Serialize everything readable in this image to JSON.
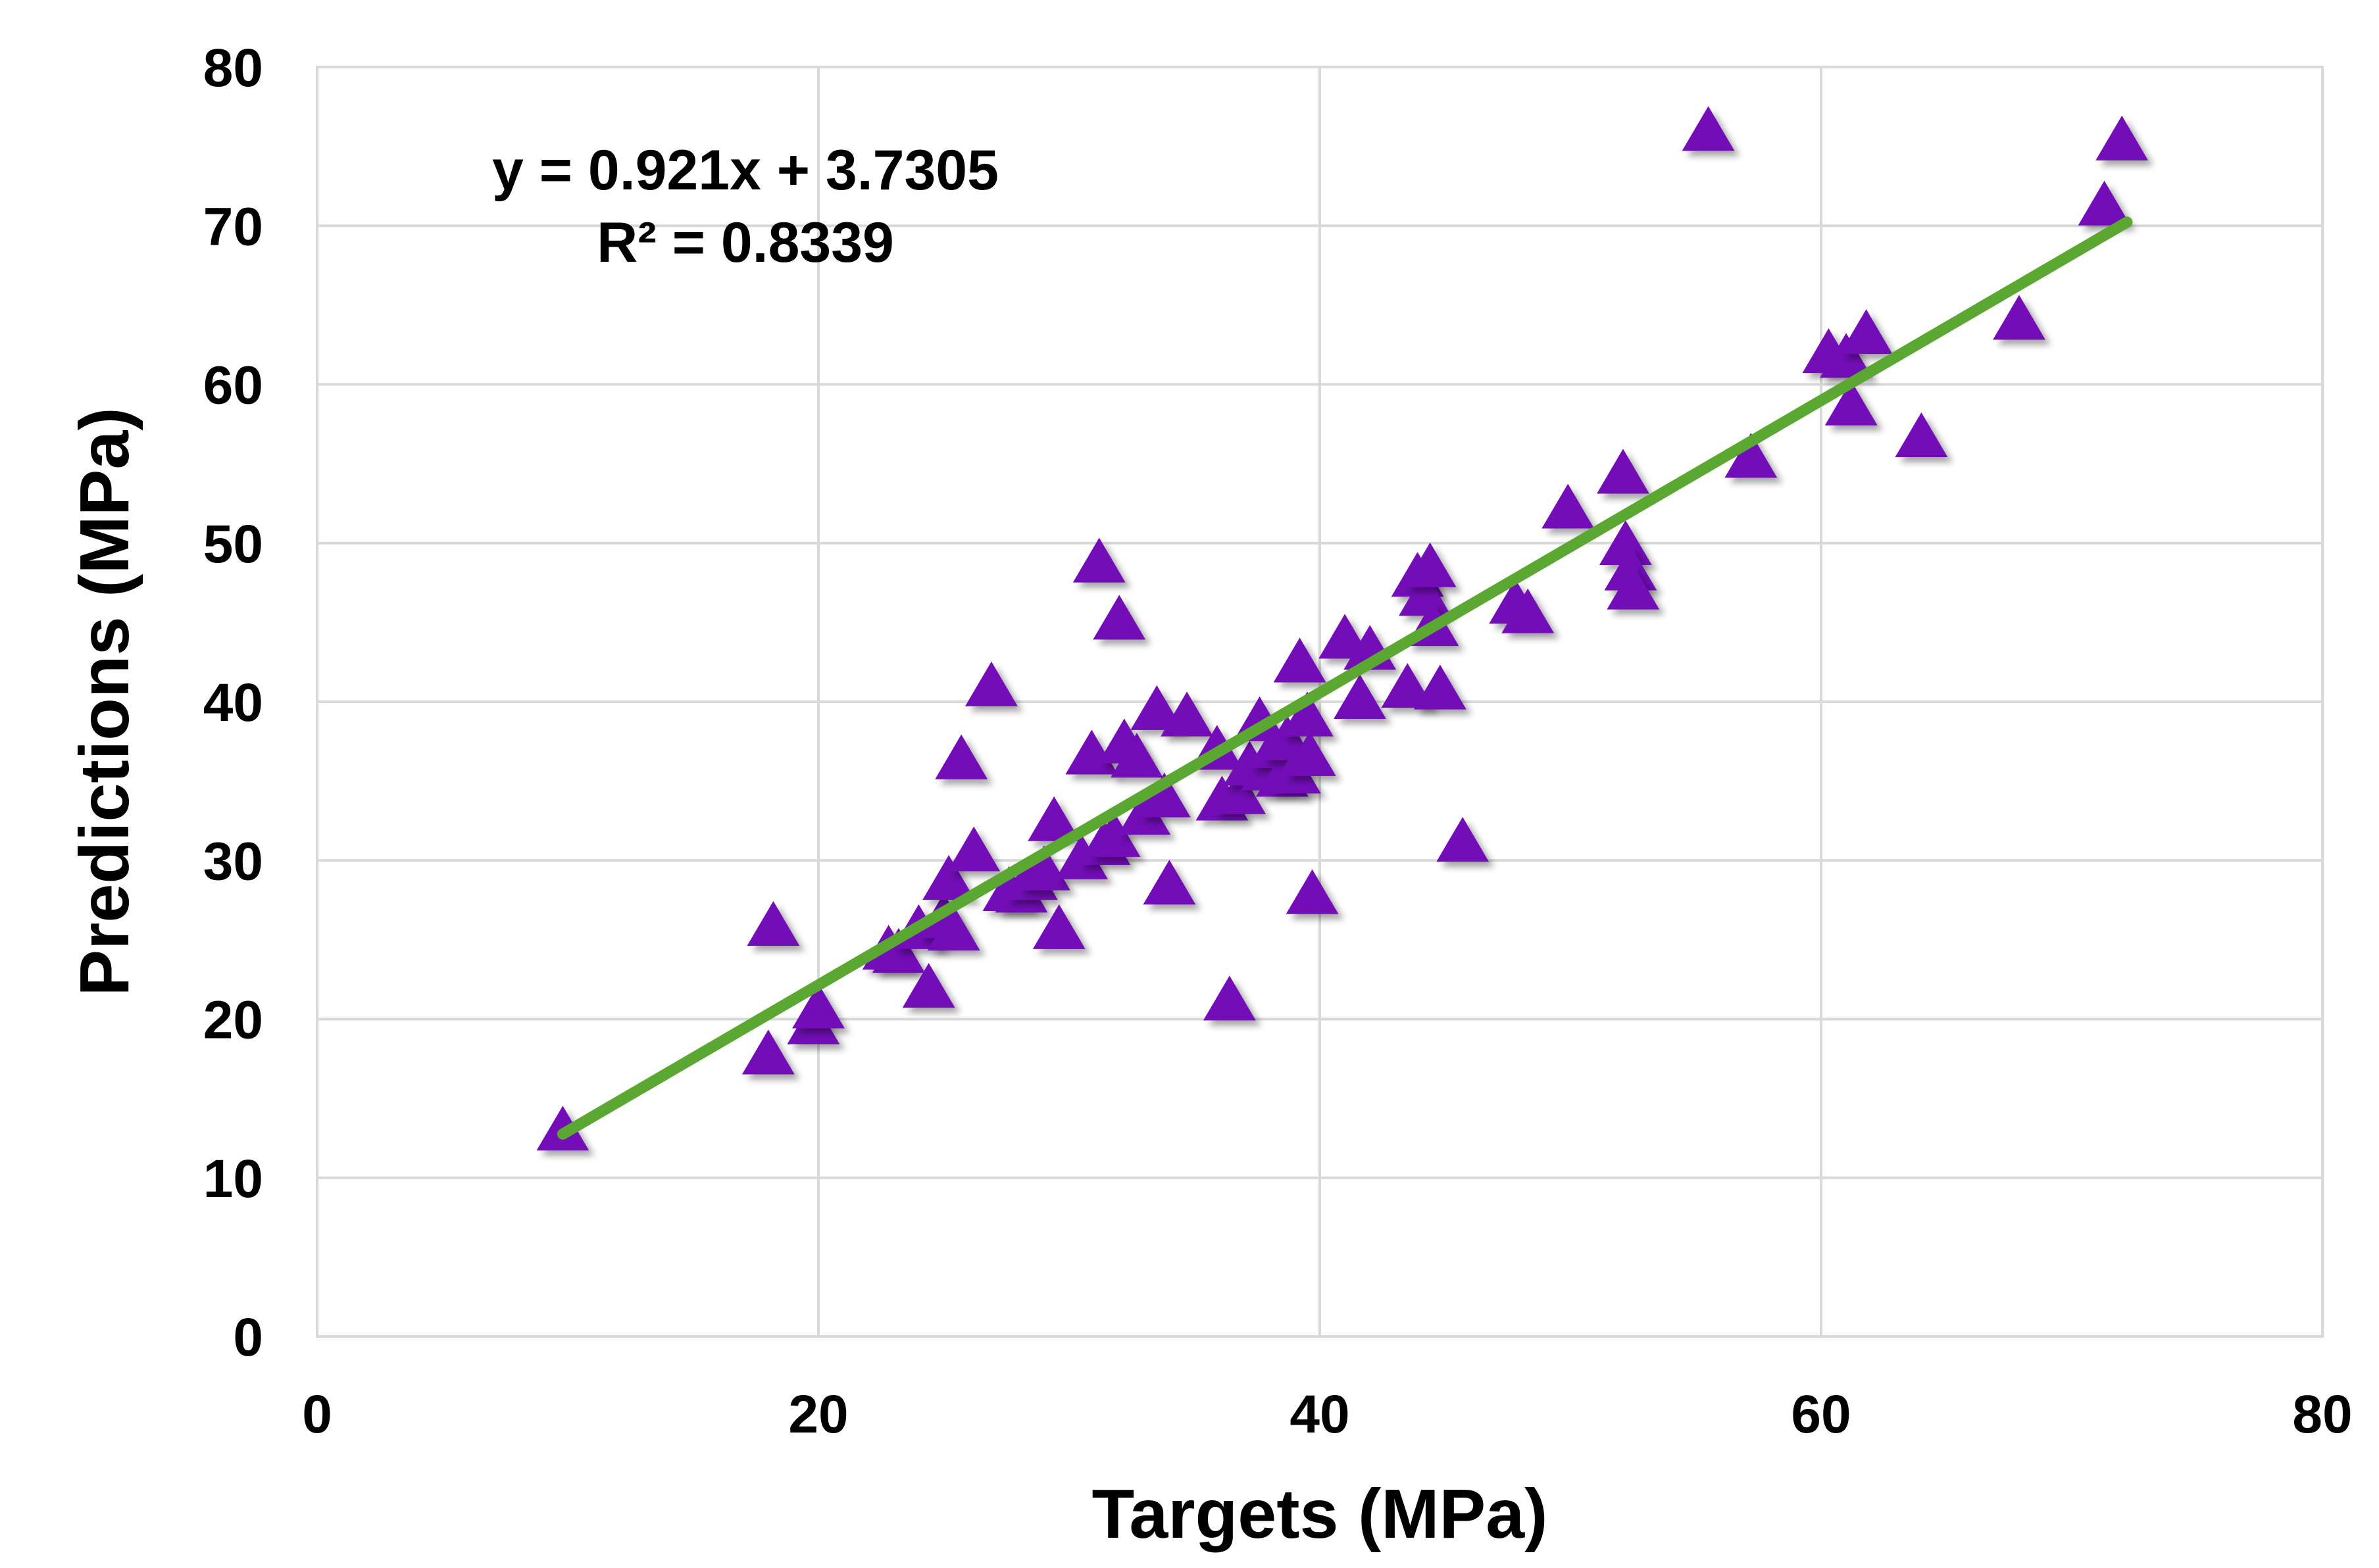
{
  "chart_data": {
    "type": "scatter",
    "title": "",
    "xlabel": "Targets (MPa)",
    "ylabel": "Predictions (MPa)",
    "xlim": [
      0,
      80
    ],
    "ylim": [
      0,
      80
    ],
    "xticks": [
      0,
      20,
      40,
      60,
      80
    ],
    "yticks": [
      0,
      10,
      20,
      30,
      40,
      50,
      60,
      70,
      80
    ],
    "grid": true,
    "marker": "triangle",
    "marker_color": "#7209b7",
    "trendline": {
      "slope": 0.921,
      "intercept": 3.7305,
      "x_range": [
        9.8,
        72.2
      ],
      "color": "#5aa832",
      "equation_label": "y = 0.921x + 3.7305",
      "r2_label": "R² = 0.8339"
    },
    "series": [
      {
        "name": "Predictions",
        "points": [
          [
            9.8,
            12.8
          ],
          [
            18.0,
            17.6
          ],
          [
            18.2,
            25.7
          ],
          [
            19.8,
            19.5
          ],
          [
            20.0,
            20.5
          ],
          [
            22.8,
            24.2
          ],
          [
            23.2,
            24.0
          ],
          [
            24.0,
            25.5
          ],
          [
            24.4,
            21.8
          ],
          [
            25.0,
            26.2
          ],
          [
            25.2,
            28.6
          ],
          [
            25.4,
            25.4
          ],
          [
            25.7,
            36.2
          ],
          [
            26.2,
            30.4
          ],
          [
            26.9,
            40.8
          ],
          [
            27.6,
            27.9
          ],
          [
            28.1,
            27.8
          ],
          [
            28.5,
            28.6
          ],
          [
            29.0,
            29.2
          ],
          [
            29.4,
            32.3
          ],
          [
            29.6,
            25.5
          ],
          [
            30.5,
            29.9
          ],
          [
            30.9,
            36.5
          ],
          [
            31.2,
            48.6
          ],
          [
            31.4,
            30.8
          ],
          [
            31.8,
            31.3
          ],
          [
            32.0,
            45.0
          ],
          [
            32.2,
            37.2
          ],
          [
            32.7,
            36.3
          ],
          [
            33.0,
            32.7
          ],
          [
            33.5,
            39.3
          ],
          [
            33.8,
            33.8
          ],
          [
            34.0,
            28.3
          ],
          [
            34.7,
            38.9
          ],
          [
            35.9,
            36.8
          ],
          [
            36.1,
            33.6
          ],
          [
            36.4,
            21.0
          ],
          [
            36.8,
            34.0
          ],
          [
            37.2,
            35.8
          ],
          [
            37.6,
            38.6
          ],
          [
            37.9,
            35.5
          ],
          [
            38.2,
            36.9
          ],
          [
            38.5,
            35.1
          ],
          [
            38.7,
            37.4
          ],
          [
            39.0,
            35.3
          ],
          [
            39.2,
            42.3
          ],
          [
            39.5,
            38.9
          ],
          [
            39.6,
            36.4
          ],
          [
            39.7,
            27.7
          ],
          [
            41.0,
            43.8
          ],
          [
            41.6,
            40.0
          ],
          [
            42.0,
            43.1
          ],
          [
            43.5,
            40.7
          ],
          [
            43.9,
            47.7
          ],
          [
            44.2,
            46.5
          ],
          [
            44.4,
            48.3
          ],
          [
            44.5,
            44.6
          ],
          [
            44.8,
            40.6
          ],
          [
            45.7,
            31.0
          ],
          [
            47.8,
            46.0
          ],
          [
            48.3,
            45.4
          ],
          [
            49.9,
            52.0
          ],
          [
            52.1,
            54.2
          ],
          [
            52.2,
            49.7
          ],
          [
            52.4,
            48.1
          ],
          [
            52.5,
            46.9
          ],
          [
            55.5,
            75.8
          ],
          [
            57.2,
            55.2
          ],
          [
            60.3,
            61.8
          ],
          [
            61.0,
            61.5
          ],
          [
            61.2,
            58.5
          ],
          [
            61.8,
            63.0
          ],
          [
            64.0,
            56.5
          ],
          [
            67.9,
            63.9
          ],
          [
            71.3,
            71.1
          ],
          [
            72.0,
            75.2
          ]
        ]
      }
    ]
  }
}
